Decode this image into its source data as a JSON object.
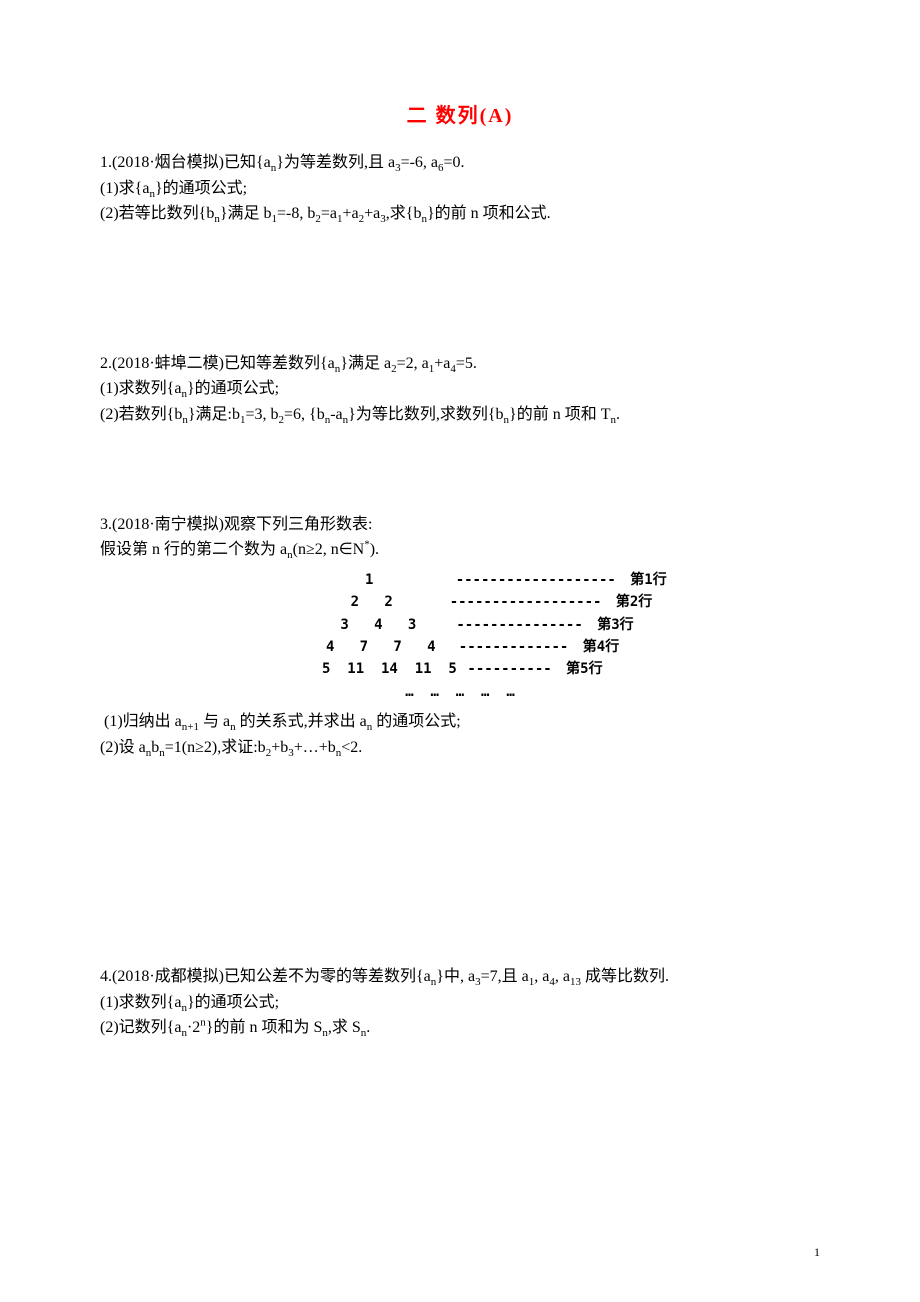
{
  "title_color": "#ff0000",
  "title_fontsize": "20px",
  "title_text": "二  数列(A)",
  "p1": {
    "l1a": "1.(2018·烟台模拟)已知{a",
    "l1b": "}为等差数列,且 a",
    "l1c": "=-6, a",
    "l1d": "=0.",
    "l2a": "(1)求{a",
    "l2b": "}的通项公式;",
    "l3a": "(2)若等比数列{b",
    "l3b": "}满足 b",
    "l3c": "=-8, b",
    "l3d": "=a",
    "l3e": "+a",
    "l3f": "+a",
    "l3g": ",求{b",
    "l3h": "}的前 n 项和公式."
  },
  "p2": {
    "l1a": "2.(2018·蚌埠二模)已知等差数列{a",
    "l1b": "}满足 a",
    "l1c": "=2, a",
    "l1d": "+a",
    "l1e": "=5.",
    "l2a": "(1)求数列{a",
    "l2b": "}的通项公式;",
    "l3a": "(2)若数列{b",
    "l3b": "}满足:b",
    "l3c": "=3, b",
    "l3d": "=6, {b",
    "l3e": "-a",
    "l3f": "}为等比数列,求数列{b",
    "l3g": "}的前 n 项和 T",
    "l3h": "."
  },
  "p3": {
    "l1": "3.(2018·南宁模拟)观察下列三角形数表:",
    "l2a": "假设第 n 行的第二个数为 a",
    "l2b": "(n≥2, n∈N",
    "l2c": ").",
    "q1a": "(1)归纳出 a",
    "q1b": " 与 a",
    "q1c": " 的关系式,并求出 a",
    "q1d": " 的通项公式;",
    "q2a": "(2)设 a",
    "q2b": "b",
    "q2c": "=1(n≥2),求证:b",
    "q2d": "+b",
    "q2e": "+…+b",
    "q2f": "<2."
  },
  "triangle": {
    "label_prefix": "第",
    "label_suffix": "行",
    "fontsize": "14px",
    "fontweight": "bold",
    "rows": [
      {
        "nums": "1",
        "dash": " ------------------- ",
        "row": "1",
        "pad": 44
      },
      {
        "nums": "2   2",
        "dash": "------------------ ",
        "row": "2",
        "pad": 32
      },
      {
        "nums": "3   4   3",
        "dash": "--------------- ",
        "row": "3",
        "pad": 20
      },
      {
        "nums": "4   7   7   4",
        "dash": "------------- ",
        "row": "4",
        "pad": 8
      },
      {
        "nums": "5  11  14  11  5",
        "dash": "---------- ",
        "row": "5",
        "pad": 0
      }
    ],
    "dots": "…  …  …  …  …"
  },
  "p4": {
    "l1a": "4.(2018·成都模拟)已知公差不为零的等差数列{a",
    "l1b": "}中, a",
    "l1c": "=7,且 a",
    "l1d": ", a",
    "l1e": ", a",
    "l1f": " 成等比数列.",
    "l2a": "(1)求数列{a",
    "l2b": "}的通项公式;",
    "l3a": "(2)记数列{a",
    "l3b": "·2",
    "l3c": "}的前 n 项和为 S",
    "l3d": ",求 S",
    "l3e": "."
  },
  "subs": {
    "n": "n",
    "n1": "n+1",
    "1": "1",
    "2": "2",
    "3": "3",
    "4": "4",
    "6": "6",
    "13": "13"
  },
  "sups": {
    "star": "*",
    "n": "n"
  },
  "page_number": "1"
}
